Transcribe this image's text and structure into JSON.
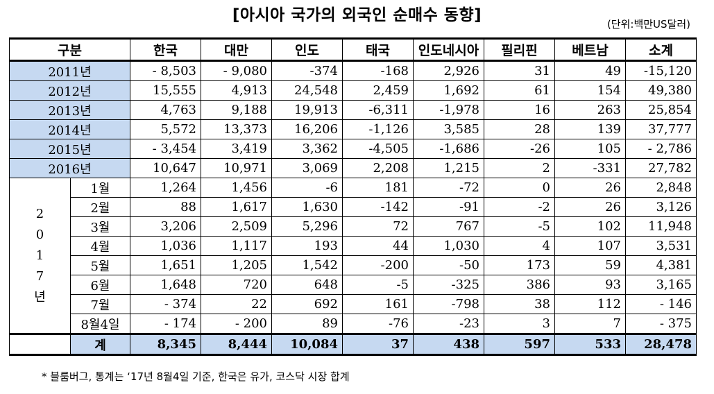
{
  "title": "[아시아 국가의 외국인 순매수 동향]",
  "unit": "(단위:백만US달러)",
  "headers": [
    "구분",
    "한국",
    "대만",
    "인도",
    "태국",
    "인도네시아",
    "필리핀",
    "베트남",
    "소계"
  ],
  "year_rows": [
    {
      "label": "2011년",
      "values": [
        "- 8,503",
        "- 9,080",
        "-374",
        "-168",
        "2,926",
        "31",
        "49",
        "-15,120"
      ]
    },
    {
      "label": "2012년",
      "values": [
        "15,555",
        "4,913",
        "24,548",
        "2,459",
        "1,692",
        "61",
        "154",
        "49,380"
      ]
    },
    {
      "label": "2013년",
      "values": [
        "4,763",
        "9,188",
        "19,913",
        "-6,311",
        "-1,978",
        "16",
        "263",
        "25,854"
      ]
    },
    {
      "label": "2014년",
      "values": [
        "5,572",
        "13,373",
        "16,206",
        "-1,126",
        "3,585",
        "28",
        "139",
        "37,777"
      ]
    },
    {
      "label": "2015년",
      "values": [
        "- 3,454",
        "3,419",
        "3,362",
        "-4,505",
        "-1,686",
        "-26",
        "105",
        "- 2,786"
      ]
    },
    {
      "label": "2016년",
      "values": [
        "10,647",
        "10,971",
        "3,069",
        "2,208",
        "1,215",
        "2",
        "-331",
        "27,782"
      ]
    }
  ],
  "year_2017_label": [
    "2",
    "0",
    "1",
    "7",
    "년"
  ],
  "month_rows": [
    {
      "label": "1월",
      "values": [
        "1,264",
        "1,456",
        "-6",
        "181",
        "-72",
        "0",
        "26",
        "2,848"
      ]
    },
    {
      "label": "2월",
      "values": [
        "88",
        "1,617",
        "1,630",
        "-142",
        "-91",
        "-2",
        "26",
        "3,126"
      ]
    },
    {
      "label": "3월",
      "values": [
        "3,206",
        "2,509",
        "5,296",
        "72",
        "767",
        "-5",
        "102",
        "11,948"
      ]
    },
    {
      "label": "4월",
      "values": [
        "1,036",
        "1,117",
        "193",
        "44",
        "1,030",
        "4",
        "107",
        "3,531"
      ]
    },
    {
      "label": "5월",
      "values": [
        "1,651",
        "1,205",
        "1,542",
        "-200",
        "-50",
        "173",
        "59",
        "4,381"
      ]
    },
    {
      "label": "6월",
      "values": [
        "1,648",
        "720",
        "648",
        "-5",
        "-325",
        "386",
        "93",
        "3,165"
      ]
    },
    {
      "label": "7월",
      "values": [
        "- 374",
        "22",
        "692",
        "161",
        "-798",
        "38",
        "112",
        "- 146"
      ]
    },
    {
      "label": "8월4일",
      "values": [
        "- 174",
        "- 200",
        "89",
        "-76",
        "-23",
        "3",
        "7",
        "- 375"
      ]
    }
  ],
  "total_row": {
    "label": "계",
    "values": [
      "8,345",
      "8,444",
      "10,084",
      "37",
      "438",
      "597",
      "533",
      "28,478"
    ]
  },
  "footnote": "* 블룸버그, 통계는 ‘17년 8월4일 기준, 한국은 유가, 코스닥 시장 합계",
  "colors": {
    "label_bg": "#c6d9f1",
    "border": "#000000"
  }
}
